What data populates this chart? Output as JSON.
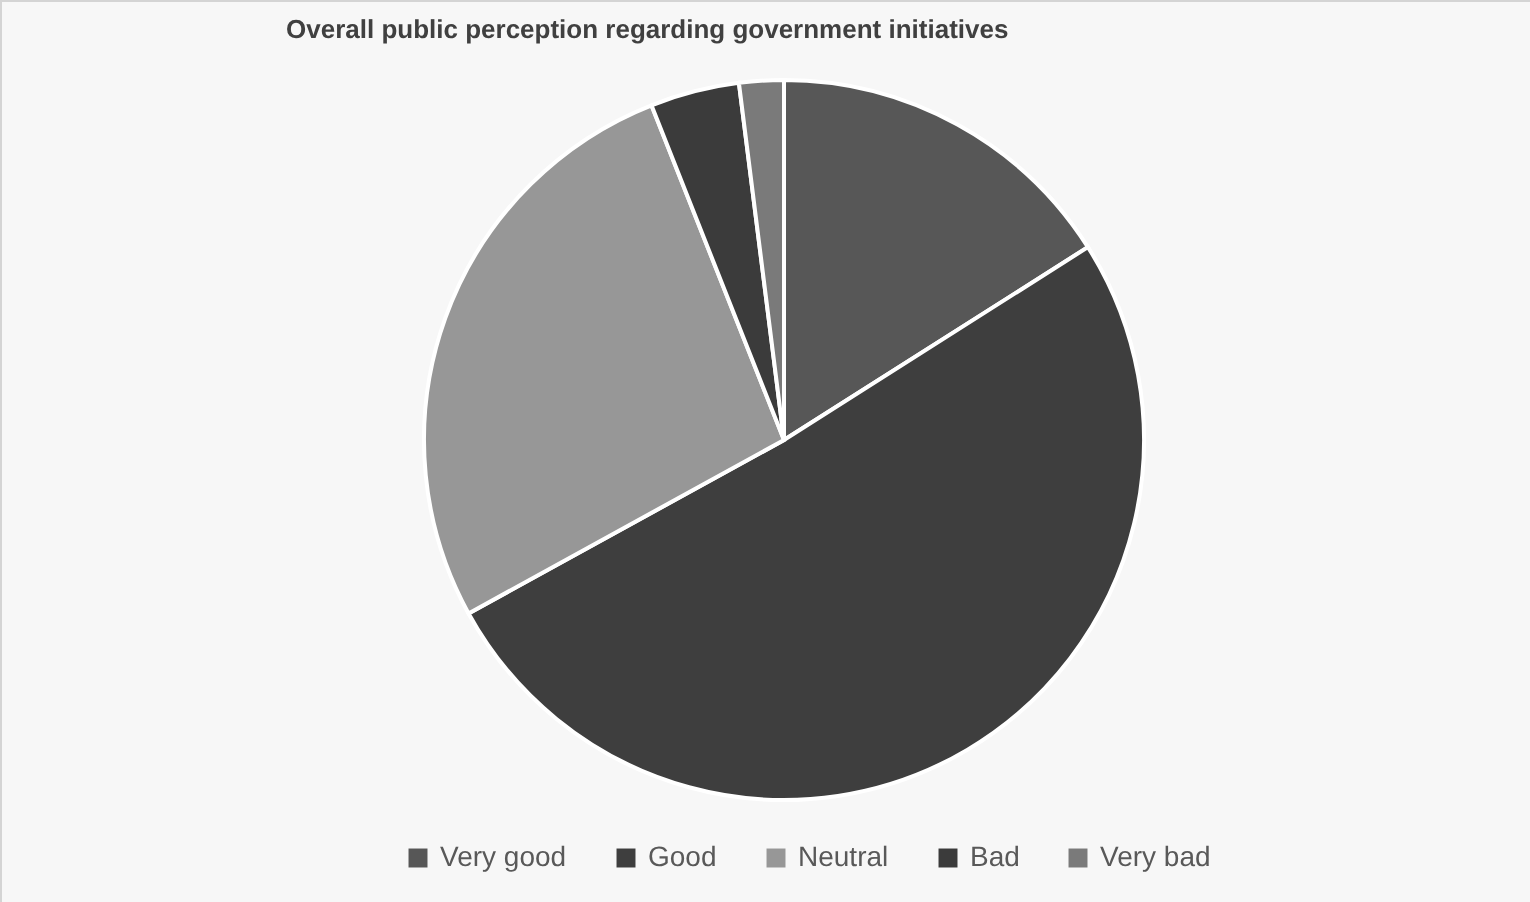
{
  "chart_data": {
    "type": "pie",
    "title": "Overall public perception regarding government initiatives",
    "categories": [
      "Very good",
      "Good",
      "Neutral",
      "Bad",
      "Very bad"
    ],
    "values": [
      16,
      51,
      27,
      4,
      2
    ],
    "colors": [
      "#575757",
      "#3e3e3e",
      "#979797",
      "#3b3b3b",
      "#7a7a7a"
    ],
    "legend": "bottom"
  }
}
